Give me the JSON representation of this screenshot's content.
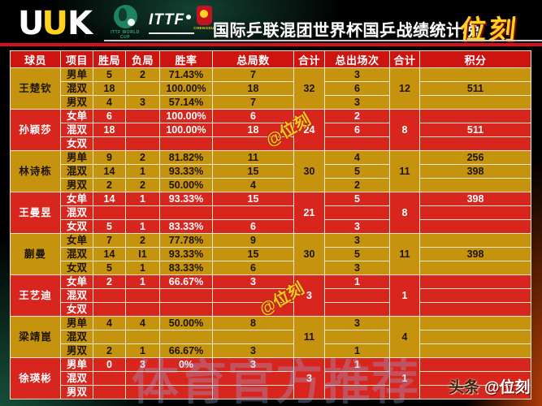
{
  "banner": {
    "title": "国际乒联混团世界杯国乒战绩统计榜",
    "brand": "位刻"
  },
  "logos": {
    "uuk": [
      "U",
      "U",
      "K"
    ],
    "ittf_worldcup": "ITTF WORLD CUP",
    "ittf": "ITTF",
    "chengdu": "CHENGDU"
  },
  "table": {
    "headers": [
      "球员",
      "项目",
      "胜局",
      "负局",
      "胜率",
      "总局数",
      "合计",
      "总出场次",
      "合计",
      "积分"
    ]
  },
  "chart_data": {
    "type": "table",
    "title": "国际乒联混团世界杯国乒战绩统计榜",
    "columns": [
      "球员",
      "项目",
      "胜局",
      "负局",
      "胜率",
      "总局数",
      "合计(总局数)",
      "总出场次",
      "合计(总出场次)",
      "积分"
    ],
    "players": [
      {
        "name": "王楚钦",
        "theme": "gold",
        "sum_games": "32",
        "sum_apps": "12",
        "rows": [
          {
            "event": "男单",
            "wins": "5",
            "losses": "2",
            "rate": "71.43%",
            "games": "7",
            "apps": "3",
            "points": ""
          },
          {
            "event": "混双",
            "wins": "18",
            "losses": "",
            "rate": "100.00%",
            "games": "18",
            "apps": "6",
            "points": "511"
          },
          {
            "event": "男双",
            "wins": "4",
            "losses": "3",
            "rate": "57.14%",
            "games": "7",
            "apps": "3",
            "points": ""
          }
        ]
      },
      {
        "name": "孙颖莎",
        "theme": "red",
        "sum_games": "24",
        "sum_apps": "8",
        "rows": [
          {
            "event": "女单",
            "wins": "6",
            "losses": "",
            "rate": "100.00%",
            "games": "6",
            "apps": "2",
            "points": ""
          },
          {
            "event": "混双",
            "wins": "18",
            "losses": "",
            "rate": "100.00%",
            "games": "18",
            "apps": "6",
            "points": "511"
          },
          {
            "event": "女双",
            "wins": "",
            "losses": "",
            "rate": "",
            "games": "",
            "apps": "",
            "points": ""
          }
        ]
      },
      {
        "name": "林诗栋",
        "theme": "gold",
        "sum_games": "30",
        "sum_apps": "11",
        "rows": [
          {
            "event": "男单",
            "wins": "9",
            "losses": "2",
            "rate": "81.82%",
            "games": "11",
            "apps": "4",
            "points": "256"
          },
          {
            "event": "混双",
            "wins": "14",
            "losses": "1",
            "rate": "93.33%",
            "games": "15",
            "apps": "5",
            "points": "398"
          },
          {
            "event": "男双",
            "wins": "2",
            "losses": "2",
            "rate": "50.00%",
            "games": "4",
            "apps": "2",
            "points": ""
          }
        ]
      },
      {
        "name": "王曼昱",
        "theme": "red",
        "sum_games": "21",
        "sum_apps": "8",
        "rows": [
          {
            "event": "女单",
            "wins": "14",
            "losses": "1",
            "rate": "93.33%",
            "games": "15",
            "apps": "5",
            "points": "398"
          },
          {
            "event": "混双",
            "wins": "",
            "losses": "",
            "rate": "",
            "games": "",
            "apps": "",
            "points": ""
          },
          {
            "event": "女双",
            "wins": "5",
            "losses": "1",
            "rate": "83.33%",
            "games": "6",
            "apps": "3",
            "points": ""
          }
        ]
      },
      {
        "name": "蒯曼",
        "theme": "gold",
        "sum_games": "30",
        "sum_apps": "11",
        "rows": [
          {
            "event": "女单",
            "wins": "7",
            "losses": "2",
            "rate": "77.78%",
            "games": "9",
            "apps": "3",
            "points": ""
          },
          {
            "event": "混双",
            "wins": "14",
            "losses": "I1",
            "rate": "93.33%",
            "games": "15",
            "apps": "5",
            "points": "398"
          },
          {
            "event": "女双",
            "wins": "5",
            "losses": "1",
            "rate": "83.33%",
            "games": "6",
            "apps": "3",
            "points": ""
          }
        ]
      },
      {
        "name": "王艺迪",
        "theme": "red",
        "sum_games": "3",
        "sum_apps": "1",
        "rows": [
          {
            "event": "女单",
            "wins": "2",
            "losses": "1",
            "rate": "66.67%",
            "games": "3",
            "apps": "1",
            "points": ""
          },
          {
            "event": "混双",
            "wins": "",
            "losses": "",
            "rate": "",
            "games": "",
            "apps": "",
            "points": ""
          },
          {
            "event": "女双",
            "wins": "",
            "losses": "",
            "rate": "",
            "games": "",
            "apps": "",
            "points": ""
          }
        ]
      },
      {
        "name": "梁靖崑",
        "theme": "gold",
        "sum_games": "11",
        "sum_apps": "4",
        "rows": [
          {
            "event": "男单",
            "wins": "4",
            "losses": "4",
            "rate": "50.00%",
            "games": "8",
            "apps": "3",
            "points": ""
          },
          {
            "event": "混双",
            "wins": "",
            "losses": "",
            "rate": "",
            "games": "",
            "apps": "",
            "points": ""
          },
          {
            "event": "男双",
            "wins": "2",
            "losses": "1",
            "rate": "66.67%",
            "games": "3",
            "apps": "1",
            "points": ""
          }
        ]
      },
      {
        "name": "徐瑛彬",
        "theme": "red",
        "sum_games": "3",
        "sum_apps": "1",
        "rows": [
          {
            "event": "男单",
            "wins": "0",
            "losses": "3",
            "rate": "0%",
            "games": "3",
            "apps": "1",
            "points": ""
          },
          {
            "event": "混双",
            "wins": "",
            "losses": "",
            "rate": "",
            "games": "",
            "apps": "",
            "points": ""
          },
          {
            "event": "男双",
            "wins": "",
            "losses": "",
            "rate": "",
            "games": "",
            "apps": "",
            "points": ""
          }
        ]
      }
    ]
  },
  "watermarks": {
    "stamp": "@位刻",
    "big": "体育官方推荐"
  },
  "footer": {
    "platform": "头条",
    "handle": "@位刻"
  },
  "colors": {
    "gold_row": "#c6930f",
    "red_row": "#d8261e",
    "header_red": "#ce1410",
    "border": "#f1e8ce",
    "accent_yellow": "#ffd21e",
    "divider_red": "#d6101c"
  }
}
